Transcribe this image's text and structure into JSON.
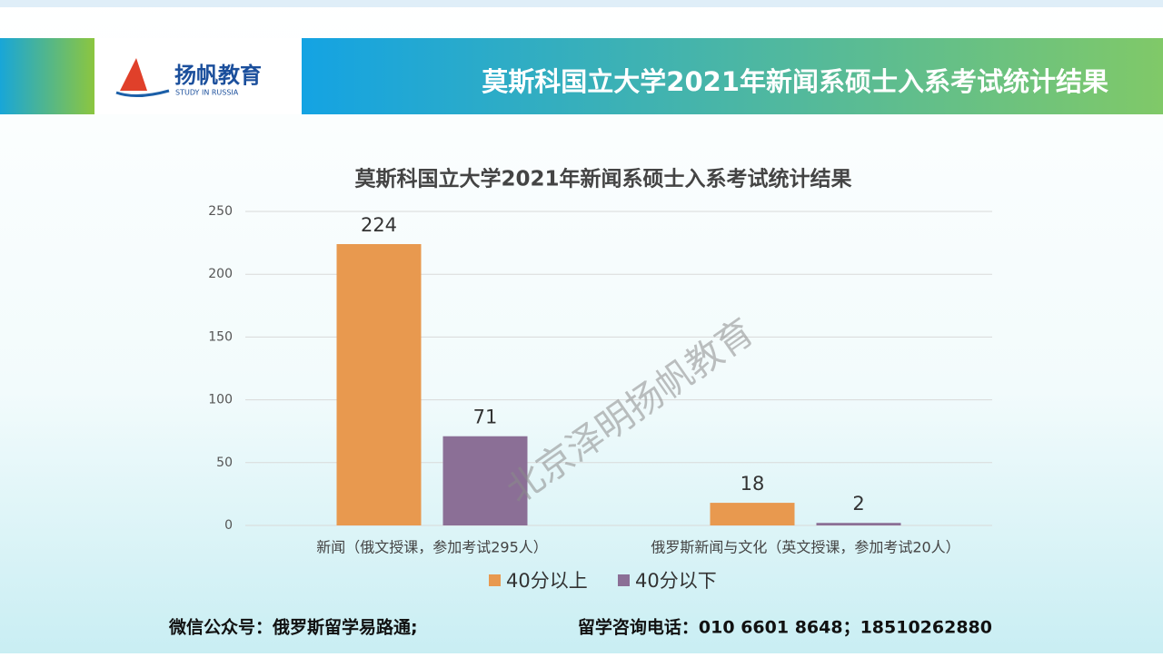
{
  "header": {
    "title": "莫斯科国立大学2021年新闻系硕士入系考试统计结果",
    "logo": "扬帆教育",
    "logo_sub": "STUDY IN RUSSIA"
  },
  "chart_data": {
    "type": "bar",
    "title": "莫斯科国立大学2021年新闻系硕士入系考试统计结果",
    "categories": [
      "新闻（俄文授课，参加考试295人）",
      "俄罗斯新闻与文化（英文授课，参加考试20人）"
    ],
    "series": [
      {
        "name": "40分以上",
        "color": "#e8994f",
        "values": [
          224,
          18
        ]
      },
      {
        "name": "40分以下",
        "color": "#8b6f96",
        "values": [
          71,
          2
        ]
      }
    ],
    "ylim": [
      0,
      250
    ],
    "yticks": [
      0,
      50,
      100,
      150,
      200,
      250
    ],
    "grid": true,
    "legend": "bottom"
  },
  "watermark": "北京泽明扬帆教育",
  "footer": [
    "微信公众号：俄罗斯留学易路通;",
    "留学咨询电话：010 6601 8648；18510262880"
  ]
}
